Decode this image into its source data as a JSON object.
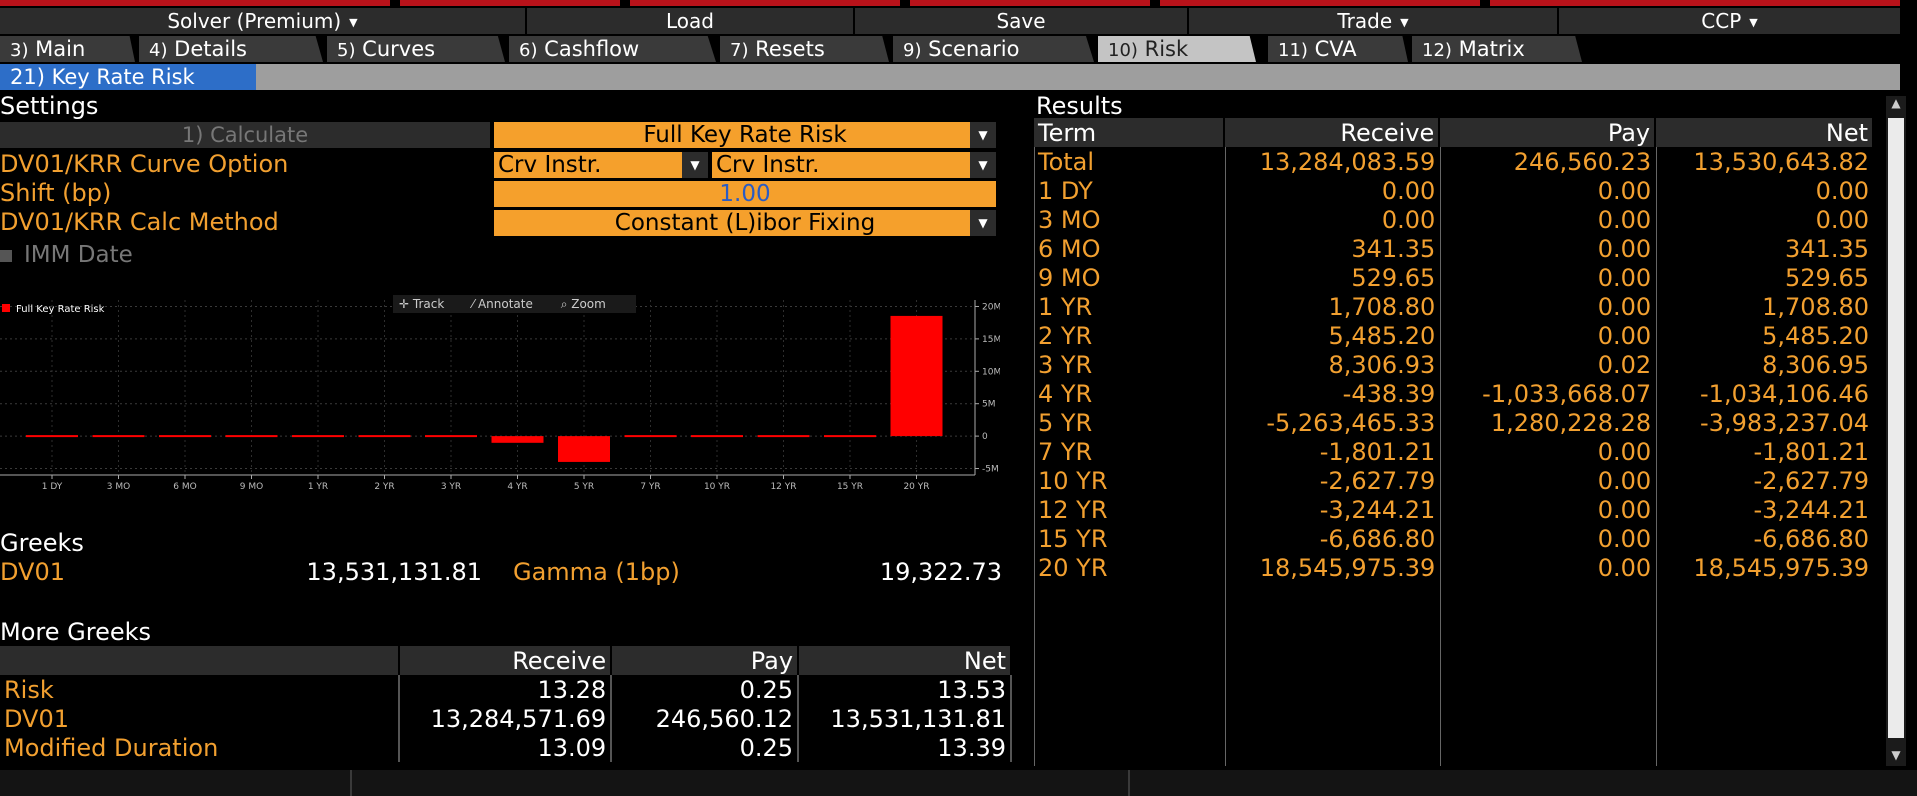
{
  "menu": [
    {
      "label": "Solver (Premium)",
      "caret": "▼"
    },
    {
      "label": "Load",
      "caret": ""
    },
    {
      "label": "Save",
      "caret": ""
    },
    {
      "label": "Trade",
      "caret": "▼"
    },
    {
      "label": "CCP",
      "caret": "▼"
    }
  ],
  "tabs": [
    {
      "num": "3)",
      "label": "Main"
    },
    {
      "num": "4)",
      "label": "Details"
    },
    {
      "num": "5)",
      "label": "Curves"
    },
    {
      "num": "6)",
      "label": "Cashflow"
    },
    {
      "num": "7)",
      "label": "Resets"
    },
    {
      "num": "9)",
      "label": "Scenario"
    },
    {
      "num": "10)",
      "label": "Risk"
    },
    {
      "num": "11)",
      "label": "CVA"
    },
    {
      "num": "12)",
      "label": "Matrix"
    }
  ],
  "subtab": "21) Key Rate Risk",
  "settings": {
    "title": "Settings",
    "calculate": "1) Calculate",
    "risk_type": "Full Key Rate Risk",
    "curve_option_label": "DV01/KRR Curve Option",
    "curve_option_1": "Crv Instr.",
    "curve_option_2": "Crv Instr.",
    "shift_label": "Shift (bp)",
    "shift_value": "1.00",
    "calc_method_label": "DV01/KRR Calc Method",
    "calc_method": "Constant (L)ibor Fixing",
    "imm_date": "IMM Date"
  },
  "chart_tools": {
    "track": "Track",
    "annotate": "Annotate",
    "zoom": "Zoom"
  },
  "chart_data": {
    "type": "bar",
    "title": "",
    "legend": "Full Key Rate Risk",
    "legend_position": "top-left",
    "color": "#ff0000",
    "categories": [
      "1 DY",
      "3 MO",
      "6 MO",
      "9 MO",
      "1 YR",
      "2 YR",
      "3 YR",
      "4 YR",
      "5 YR",
      "7 YR",
      "10 YR",
      "12 YR",
      "15 YR",
      "20 YR"
    ],
    "values": [
      0.0,
      0.0,
      341.35,
      529.65,
      1708.8,
      5485.2,
      8306.95,
      -1034106.46,
      -3983237.04,
      -1801.21,
      -2627.79,
      -3244.21,
      -6686.8,
      18545975.39
    ],
    "yticks": [
      "20M",
      "15M",
      "10M",
      "5M",
      "0",
      "-5M"
    ],
    "ytick_values": [
      20000000,
      15000000,
      10000000,
      5000000,
      0,
      -5000000
    ],
    "ylim": [
      -6000000,
      21000000
    ],
    "grid": true
  },
  "greeks": {
    "title": "Greeks",
    "dv01_label": "DV01",
    "dv01_value": "13,531,131.81",
    "gamma_label": "Gamma (1bp)",
    "gamma_value": "19,322.73"
  },
  "more_greeks": {
    "title": "More Greeks",
    "headers": [
      "",
      "Receive",
      "Pay",
      "Net"
    ],
    "rows": [
      [
        "Risk",
        "13.28",
        "0.25",
        "13.53"
      ],
      [
        "DV01",
        "13,284,571.69",
        "246,560.12",
        "13,531,131.81"
      ],
      [
        "Modified Duration",
        "13.09",
        "0.25",
        "13.39"
      ]
    ]
  },
  "results": {
    "title": "Results",
    "headers": [
      "Term",
      "Receive",
      "Pay",
      "Net"
    ],
    "rows": [
      [
        "Total",
        "13,284,083.59",
        "246,560.23",
        "13,530,643.82"
      ],
      [
        "1 DY",
        "0.00",
        "0.00",
        "0.00"
      ],
      [
        "3 MO",
        "0.00",
        "0.00",
        "0.00"
      ],
      [
        "6 MO",
        "341.35",
        "0.00",
        "341.35"
      ],
      [
        "9 MO",
        "529.65",
        "0.00",
        "529.65"
      ],
      [
        "1 YR",
        "1,708.80",
        "0.00",
        "1,708.80"
      ],
      [
        "2 YR",
        "5,485.20",
        "0.00",
        "5,485.20"
      ],
      [
        "3 YR",
        "8,306.93",
        "0.02",
        "8,306.95"
      ],
      [
        "4 YR",
        "-438.39",
        "-1,033,668.07",
        "-1,034,106.46"
      ],
      [
        "5 YR",
        "-5,263,465.33",
        "1,280,228.28",
        "-3,983,237.04"
      ],
      [
        "7 YR",
        "-1,801.21",
        "0.00",
        "-1,801.21"
      ],
      [
        "10 YR",
        "-2,627.79",
        "0.00",
        "-2,627.79"
      ],
      [
        "12 YR",
        "-3,244.21",
        "0.00",
        "-3,244.21"
      ],
      [
        "15 YR",
        "-6,686.80",
        "0.00",
        "-6,686.80"
      ],
      [
        "20 YR",
        "18,545,975.39",
        "0.00",
        "18,545,975.39"
      ]
    ]
  }
}
